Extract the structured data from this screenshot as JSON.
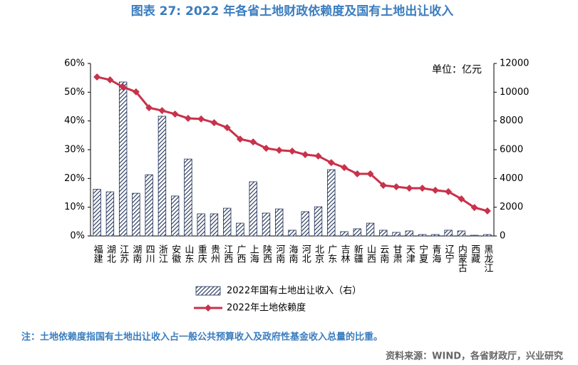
{
  "chart_data": {
    "type": "bar-line",
    "title": "图表 27: 2022 年各省土地财政依赖度及国有土地出让收入",
    "unit_label": "单位：亿元",
    "note": "注：土地依赖度指国有土地出让收入占一般公共预算收入及政府性基金收入总量的比重。",
    "source": "资料来源：WIND，各省财政厅，兴业研究",
    "categories": [
      "福建",
      "湖北",
      "江苏",
      "湖南",
      "四川",
      "浙江",
      "安徽",
      "山东",
      "重庆",
      "贵州",
      "江西",
      "广西",
      "上海",
      "陕西",
      "河南",
      "海南",
      "河北",
      "北京",
      "广东",
      "吉林",
      "新疆",
      "山西",
      "云南",
      "甘肃",
      "天津",
      "宁夏",
      "青海",
      "辽宁",
      "内蒙古",
      "西藏",
      "黑龙江"
    ],
    "series": [
      {
        "name": "2022年国有土地出让收入（右）",
        "type": "bar",
        "axis": "y2",
        "color": "#1f3056",
        "values": [
          3250,
          3070,
          10710,
          2970,
          4260,
          8330,
          2780,
          5350,
          1540,
          1540,
          1930,
          890,
          3770,
          1590,
          1880,
          400,
          1690,
          2030,
          4610,
          300,
          500,
          890,
          400,
          250,
          350,
          100,
          100,
          400,
          350,
          50,
          100
        ]
      },
      {
        "name": "2022年土地依赖度",
        "type": "line",
        "axis": "y",
        "color": "#c8324b",
        "values": [
          55.3,
          54.3,
          51.8,
          50.1,
          44.6,
          43.6,
          42.4,
          40.9,
          40.7,
          39.4,
          37.7,
          33.7,
          32.7,
          30.5,
          29.8,
          29.5,
          28.3,
          27.8,
          25.5,
          23.8,
          21.6,
          21.6,
          17.6,
          17.1,
          16.6,
          16.6,
          15.9,
          15.4,
          12.9,
          9.9,
          8.7
        ]
      }
    ],
    "ylim": [
      0,
      60
    ],
    "yticks": [
      {
        "value": 0,
        "label": "0%"
      },
      {
        "value": 10,
        "label": "10%"
      },
      {
        "value": 20,
        "label": "20%"
      },
      {
        "value": 30,
        "label": "30%"
      },
      {
        "value": 40,
        "label": "40%"
      },
      {
        "value": 50,
        "label": "50%"
      },
      {
        "value": 60,
        "label": "60%"
      }
    ],
    "y2lim": [
      0,
      12000
    ],
    "y2ticks": [
      0,
      2000,
      4000,
      6000,
      8000,
      10000,
      12000
    ]
  }
}
